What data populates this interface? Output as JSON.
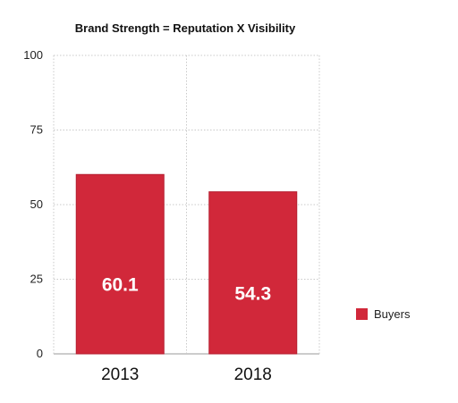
{
  "chart_data": {
    "type": "bar",
    "title": "Brand Strength = Reputation X Visibility",
    "xlabel": "",
    "ylabel": "",
    "categories": [
      "2013",
      "2018"
    ],
    "series": [
      {
        "name": "Buyers",
        "values": [
          60.1,
          54.3
        ],
        "color": "#d1283a"
      }
    ],
    "data_labels": [
      "60.1",
      "54.3"
    ],
    "ylim": [
      0,
      100
    ],
    "yticks": [
      0,
      25,
      50,
      75,
      100
    ],
    "grid": true,
    "legend": "right"
  }
}
